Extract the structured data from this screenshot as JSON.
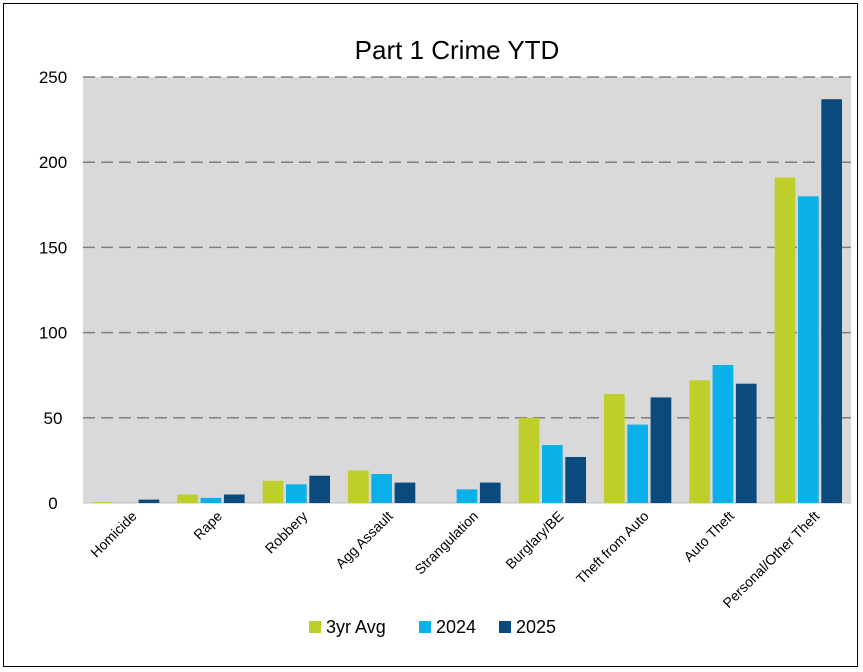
{
  "chart_data": {
    "type": "bar",
    "title": "Part 1 Crime YTD",
    "xlabel": "",
    "ylabel": "",
    "ylim": [
      0,
      250
    ],
    "yticks": [
      0,
      50,
      100,
      150,
      200,
      250
    ],
    "grid": true,
    "legend_position": "bottom",
    "categories": [
      "Homicide",
      "Rape",
      "Robbery",
      "Agg Assault",
      "Strangulation",
      "Burglary/BE",
      "Theft from Auto",
      "Auto Theft",
      "Personal/Other Theft"
    ],
    "series": [
      {
        "name": "3yr Avg",
        "color": "#bfcf2a",
        "values": [
          0.5,
          5,
          13,
          19,
          0,
          50,
          64,
          72,
          191
        ]
      },
      {
        "name": "2024",
        "color": "#0ab0e8",
        "values": [
          0,
          3,
          11,
          17,
          8,
          34,
          46,
          81,
          180
        ]
      },
      {
        "name": "2025",
        "color": "#0b4a7d",
        "values": [
          2,
          5,
          16,
          12,
          12,
          27,
          62,
          70,
          237
        ]
      }
    ],
    "plot_background": "#d9d9d9"
  }
}
